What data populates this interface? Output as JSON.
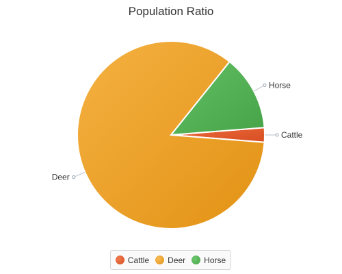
{
  "chart_data": {
    "type": "pie",
    "title": "Population Ratio",
    "slices": [
      {
        "label": "Cattle",
        "value": 2.5,
        "color": "#e05a2b"
      },
      {
        "label": "Deer",
        "value": 84.5,
        "color": "#eda126"
      },
      {
        "label": "Horse",
        "value": 13.0,
        "color": "#52ad52"
      }
    ],
    "legend_position": "bottom"
  }
}
